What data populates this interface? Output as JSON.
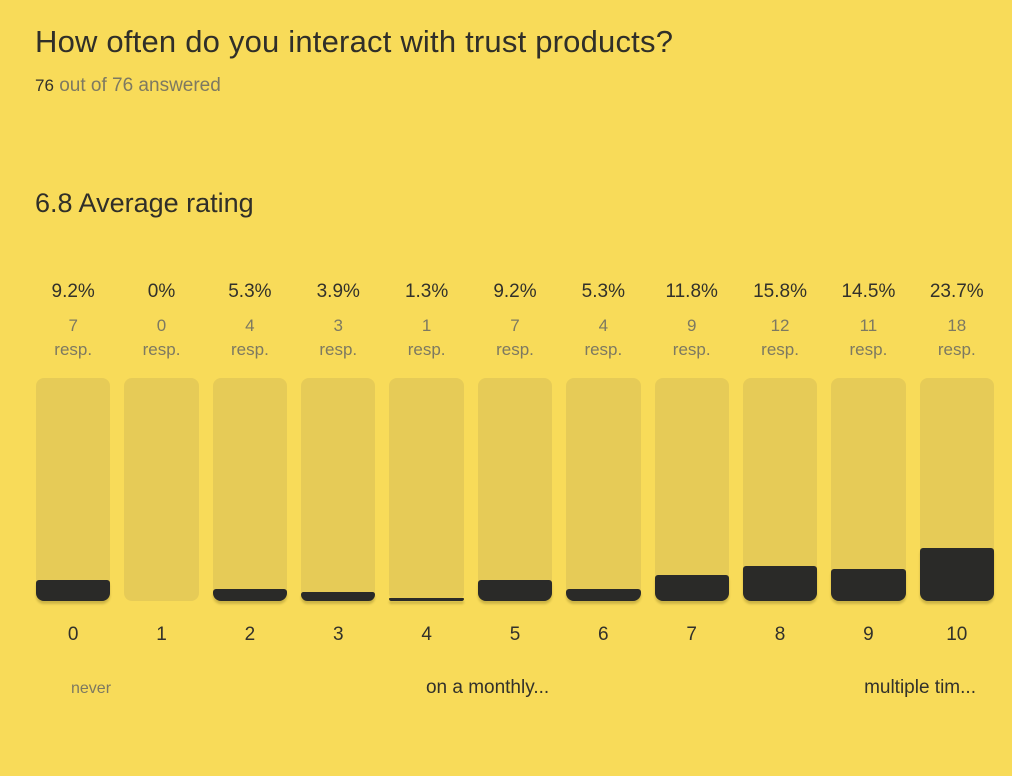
{
  "colors": {
    "background": "#F8DB59",
    "bar_track": "#E6CB57",
    "bar_fill": "#2A2A28",
    "text_dark": "#32312B",
    "text_muted": "#7D7961"
  },
  "header": {
    "title": "How often do you interact with trust products?",
    "answered_count": "76",
    "answered_rest": " out of 76 answered"
  },
  "summary": {
    "average_label": "6.8 Average rating"
  },
  "chart_data": {
    "type": "bar",
    "title": "How often do you interact with trust products?",
    "average_rating": 6.8,
    "answered": 76,
    "total": 76,
    "categories": [
      "0",
      "1",
      "2",
      "3",
      "4",
      "5",
      "6",
      "7",
      "8",
      "9",
      "10"
    ],
    "percentages": [
      9.2,
      0,
      5.3,
      3.9,
      1.3,
      9.2,
      5.3,
      11.8,
      15.8,
      14.5,
      23.7
    ],
    "percent_labels": [
      "9.2%",
      "0%",
      "5.3%",
      "3.9%",
      "1.3%",
      "9.2%",
      "5.3%",
      "11.8%",
      "15.8%",
      "14.5%",
      "23.7%"
    ],
    "responses": [
      7,
      0,
      4,
      3,
      1,
      7,
      4,
      9,
      12,
      11,
      18
    ],
    "resp_suffix": "resp.",
    "ylim": [
      0,
      100
    ],
    "legend_position": "none",
    "grid": false,
    "axis_labels": {
      "left": "never",
      "middle": "on a monthly...",
      "right": "multiple tim..."
    }
  }
}
